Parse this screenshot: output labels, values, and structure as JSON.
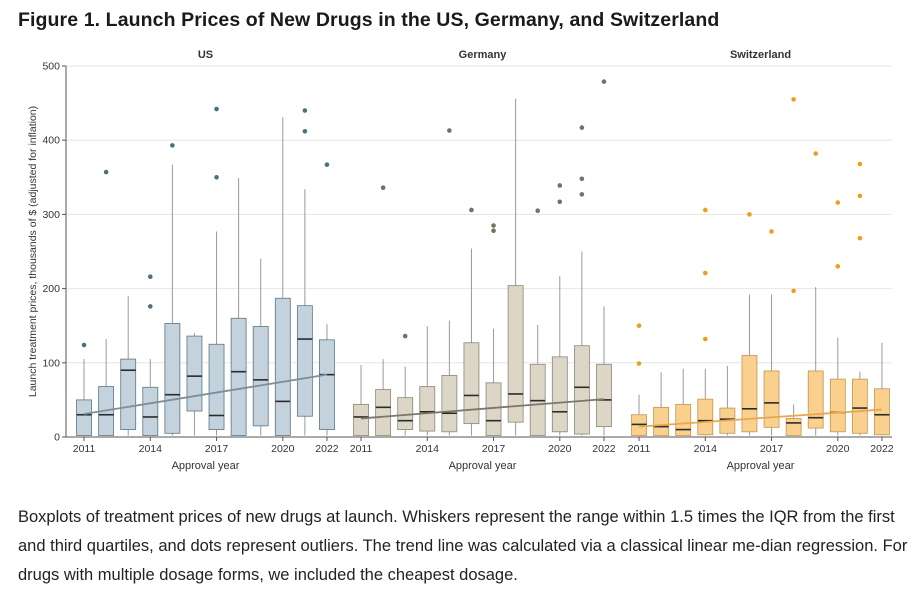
{
  "figure": {
    "title": "Figure 1.  Launch Prices of New Drugs in the US, Germany, and Switzerland",
    "caption": "Boxplots of treatment prices of new drugs at launch. Whiskers represent the range within 1.5 times the IQR from the first and third quartiles, and dots represent outliers. The trend line was calculated via a classical linear me-dian regression. For drugs with multiple dosage forms, we included the cheapest dosage."
  },
  "chart_data": {
    "type": "box",
    "ylabel": "Launch treatment prices, thousands of $ (adjusted for inflation)",
    "xlabel": "Approval year",
    "ylim": [
      0,
      500
    ],
    "yticks": [
      0,
      100,
      200,
      300,
      400,
      500
    ],
    "years": [
      2011,
      2012,
      2013,
      2014,
      2015,
      2016,
      2017,
      2018,
      2019,
      2020,
      2021,
      2022
    ],
    "xtick_labels": [
      "2011",
      "2014",
      "2017",
      "2020",
      "2022"
    ],
    "grid": true,
    "panels": [
      {
        "name": "US",
        "box_color": "#c3d2dc",
        "stroke_color": "#5e7684",
        "outlier_color": "#4d6f82",
        "trend_color": "#7a8f9b",
        "trend": [
          31,
          84
        ],
        "boxes": [
          {
            "year": 2011,
            "min": 2,
            "q1": 2,
            "median": 30,
            "q3": 50,
            "max": 105,
            "outliers": [
              124
            ]
          },
          {
            "year": 2012,
            "min": 2,
            "q1": 2,
            "median": 30,
            "q3": 68,
            "max": 132,
            "outliers": [
              357
            ]
          },
          {
            "year": 2013,
            "min": 2,
            "q1": 10,
            "median": 90,
            "q3": 105,
            "max": 190,
            "outliers": []
          },
          {
            "year": 2014,
            "min": 2,
            "q1": 2,
            "median": 27,
            "q3": 67,
            "max": 105,
            "outliers": [
              176,
              216
            ]
          },
          {
            "year": 2015,
            "min": 2,
            "q1": 5,
            "median": 57,
            "q3": 153,
            "max": 367,
            "outliers": [
              393
            ]
          },
          {
            "year": 2016,
            "min": 2,
            "q1": 35,
            "median": 82,
            "q3": 136,
            "max": 140,
            "outliers": []
          },
          {
            "year": 2017,
            "min": 2,
            "q1": 10,
            "median": 29,
            "q3": 125,
            "max": 277,
            "outliers": [
              350,
              442
            ]
          },
          {
            "year": 2018,
            "min": 2,
            "q1": 2,
            "median": 88,
            "q3": 160,
            "max": 349,
            "outliers": []
          },
          {
            "year": 2019,
            "min": 2,
            "q1": 15,
            "median": 77,
            "q3": 149,
            "max": 240,
            "outliers": []
          },
          {
            "year": 2020,
            "min": 2,
            "q1": 2,
            "median": 48,
            "q3": 187,
            "max": 431,
            "outliers": []
          },
          {
            "year": 2021,
            "min": 2,
            "q1": 28,
            "median": 132,
            "q3": 177,
            "max": 334,
            "outliers": [
              412,
              440
            ]
          },
          {
            "year": 2022,
            "min": 2,
            "q1": 10,
            "median": 84,
            "q3": 131,
            "max": 152,
            "outliers": [
              367
            ]
          }
        ]
      },
      {
        "name": "Germany",
        "box_color": "#dcd6c6",
        "stroke_color": "#8c8676",
        "outlier_color": "#76705f",
        "trend_color": "#7d776a",
        "trend": [
          25,
          51
        ],
        "boxes": [
          {
            "year": 2011,
            "min": 2,
            "q1": 2,
            "median": 27,
            "q3": 44,
            "max": 97,
            "outliers": []
          },
          {
            "year": 2012,
            "min": 2,
            "q1": 2,
            "median": 40,
            "q3": 64,
            "max": 105,
            "outliers": [
              336
            ]
          },
          {
            "year": 2013,
            "min": 2,
            "q1": 10,
            "median": 22,
            "q3": 53,
            "max": 95,
            "outliers": [
              136
            ]
          },
          {
            "year": 2014,
            "min": 2,
            "q1": 8,
            "median": 34,
            "q3": 68,
            "max": 149,
            "outliers": []
          },
          {
            "year": 2015,
            "min": 2,
            "q1": 7,
            "median": 32,
            "q3": 83,
            "max": 157,
            "outliers": [
              413
            ]
          },
          {
            "year": 2016,
            "min": 2,
            "q1": 18,
            "median": 56,
            "q3": 127,
            "max": 254,
            "outliers": [
              306
            ]
          },
          {
            "year": 2017,
            "min": 2,
            "q1": 2,
            "median": 22,
            "q3": 73,
            "max": 146,
            "outliers": [
              278,
              285
            ]
          },
          {
            "year": 2018,
            "min": 2,
            "q1": 20,
            "median": 58,
            "q3": 204,
            "max": 456,
            "outliers": []
          },
          {
            "year": 2019,
            "min": 2,
            "q1": 2,
            "median": 49,
            "q3": 98,
            "max": 151,
            "outliers": [
              305
            ]
          },
          {
            "year": 2020,
            "min": 2,
            "q1": 7,
            "median": 34,
            "q3": 108,
            "max": 217,
            "outliers": [
              317,
              339
            ]
          },
          {
            "year": 2021,
            "min": 2,
            "q1": 4,
            "median": 67,
            "q3": 123,
            "max": 250,
            "outliers": [
              327,
              348,
              417
            ]
          },
          {
            "year": 2022,
            "min": 2,
            "q1": 14,
            "median": 50,
            "q3": 98,
            "max": 176,
            "outliers": [
              479
            ]
          }
        ]
      },
      {
        "name": "Switzerland",
        "box_color": "#f9d08d",
        "stroke_color": "#c4964d",
        "outlier_color": "#ef9d1e",
        "trend_color": "#e8a850",
        "trend": [
          14,
          37
        ],
        "boxes": [
          {
            "year": 2011,
            "min": 2,
            "q1": 2,
            "median": 17,
            "q3": 30,
            "max": 57,
            "outliers": [
              99,
              150
            ]
          },
          {
            "year": 2012,
            "min": 2,
            "q1": 2,
            "median": 14,
            "q3": 40,
            "max": 87,
            "outliers": []
          },
          {
            "year": 2013,
            "min": 2,
            "q1": 2,
            "median": 10,
            "q3": 44,
            "max": 92,
            "outliers": []
          },
          {
            "year": 2014,
            "min": 2,
            "q1": 3,
            "median": 22,
            "q3": 51,
            "max": 92,
            "outliers": [
              132,
              221,
              306
            ]
          },
          {
            "year": 2015,
            "min": 2,
            "q1": 5,
            "median": 24,
            "q3": 39,
            "max": 96,
            "outliers": []
          },
          {
            "year": 2016,
            "min": 2,
            "q1": 7,
            "median": 38,
            "q3": 110,
            "max": 192,
            "outliers": [
              300
            ]
          },
          {
            "year": 2017,
            "min": 2,
            "q1": 13,
            "median": 46,
            "q3": 89,
            "max": 192,
            "outliers": [
              277
            ]
          },
          {
            "year": 2018,
            "min": 2,
            "q1": 2,
            "median": 19,
            "q3": 25,
            "max": 44,
            "outliers": [
              197,
              455
            ]
          },
          {
            "year": 2019,
            "min": 2,
            "q1": 12,
            "median": 26,
            "q3": 89,
            "max": 202,
            "outliers": [
              382
            ]
          },
          {
            "year": 2020,
            "min": 2,
            "q1": 7,
            "median": 33,
            "q3": 78,
            "max": 134,
            "outliers": [
              230,
              316
            ]
          },
          {
            "year": 2021,
            "min": 2,
            "q1": 5,
            "median": 39,
            "q3": 78,
            "max": 88,
            "outliers": [
              268,
              325,
              368
            ]
          },
          {
            "year": 2022,
            "min": 2,
            "q1": 3,
            "median": 30,
            "q3": 65,
            "max": 127,
            "outliers": []
          }
        ]
      }
    ]
  }
}
